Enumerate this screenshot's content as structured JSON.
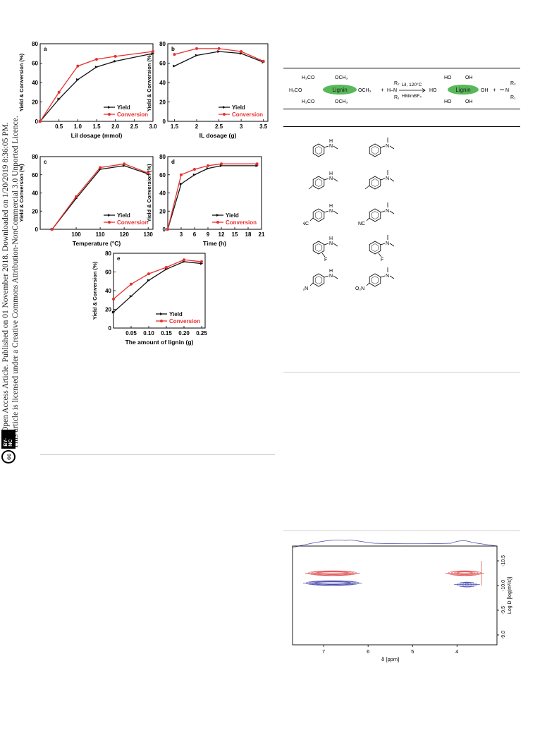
{
  "sidebar": {
    "open_access_text": "Open Access Article. Published on 01 November 2018. Downloaded on 1/20/2019 8:36:05 PM.",
    "license_text": "This article is licensed under a Creative Commons Attribution-NonCommercial 3.0 Unported Licence.",
    "cc_badge": "BY-NC",
    "cc_symbol": "cc"
  },
  "series_legend": {
    "yield": "Yield",
    "conversion": "Conversion"
  },
  "colors": {
    "yield": "#111111",
    "conversion": "#e8302e",
    "nmr_red": "#e05050",
    "nmr_blue": "#4a4ab0",
    "lignin_ellipse": "#59b95a"
  },
  "chart_data": [
    {
      "panel": "a",
      "type": "line",
      "xlabel": "LiI dosage (mmol)",
      "ylabel": "Yield & Conversion (%)",
      "xlim": [
        0,
        3.0
      ],
      "ylim": [
        0,
        80
      ],
      "xticks": [
        "0.5",
        "1.0",
        "1.5",
        "2.0",
        "2.5",
        "3.0"
      ],
      "yticks": [
        "0",
        "20",
        "40",
        "60",
        "80"
      ],
      "x": [
        0,
        0.5,
        1.0,
        1.5,
        2.0,
        3.0
      ],
      "series": [
        {
          "name": "Yield",
          "values": [
            0,
            23,
            43,
            56,
            62,
            70
          ]
        },
        {
          "name": "Conversion",
          "values": [
            0,
            30,
            57,
            64,
            67,
            72
          ]
        }
      ],
      "legend_position": "bottom-right"
    },
    {
      "panel": "b",
      "type": "line",
      "xlabel": "IL dosage (g)",
      "ylabel": "Yield & Conversion (%)",
      "xlim": [
        1.35,
        3.6
      ],
      "ylim": [
        0,
        80
      ],
      "xticks": [
        "1.5",
        "2",
        "2.5",
        "3",
        "3.5"
      ],
      "yticks": [
        "0",
        "20",
        "40",
        "60",
        "80"
      ],
      "x": [
        1.5,
        2.0,
        2.5,
        3.0,
        3.5
      ],
      "series": [
        {
          "name": "Yield",
          "values": [
            57,
            68,
            72,
            70,
            61
          ]
        },
        {
          "name": "Conversion",
          "values": [
            69,
            75,
            75,
            72,
            62
          ]
        }
      ],
      "legend_position": "bottom-right"
    },
    {
      "panel": "c",
      "type": "line",
      "xlabel": "Temperature (°C)",
      "ylabel": "Yield & Conversion (%)",
      "xlim": [
        85,
        132
      ],
      "ylim": [
        0,
        80
      ],
      "xticks": [
        "100",
        "110",
        "120",
        "130"
      ],
      "yticks": [
        "0",
        "20",
        "40",
        "60",
        "80"
      ],
      "x": [
        90,
        100,
        110,
        120,
        130
      ],
      "series": [
        {
          "name": "Yield",
          "values": [
            0,
            34,
            66,
            70,
            61
          ]
        },
        {
          "name": "Conversion",
          "values": [
            0,
            36,
            68,
            72,
            62
          ]
        }
      ],
      "legend_position": "bottom-right"
    },
    {
      "panel": "d",
      "type": "line",
      "xlabel": "Time (h)",
      "ylabel": "Yield & Conversion (%)",
      "xlim": [
        0,
        21
      ],
      "ylim": [
        0,
        80
      ],
      "xticks": [
        "3",
        "6",
        "9",
        "12",
        "15",
        "18",
        "21"
      ],
      "yticks": [
        "0",
        "20",
        "40",
        "60",
        "80"
      ],
      "x": [
        0,
        3,
        6,
        9,
        12,
        20
      ],
      "series": [
        {
          "name": "Yield",
          "values": [
            0,
            50,
            60,
            67,
            70,
            70
          ]
        },
        {
          "name": "Conversion",
          "values": [
            0,
            60,
            66,
            70,
            72,
            72
          ]
        }
      ],
      "legend_position": "bottom-right"
    },
    {
      "panel": "e",
      "type": "line",
      "xlabel": "The amount of lignin (g)",
      "ylabel": "Yield & Conversion (%)",
      "xlim": [
        0,
        0.26
      ],
      "ylim": [
        0,
        80
      ],
      "xticks": [
        "0.05",
        "0.10",
        "0.15",
        "0.20",
        "0.25"
      ],
      "yticks": [
        "0",
        "20",
        "40",
        "60",
        "80"
      ],
      "x": [
        0,
        0.05,
        0.1,
        0.15,
        0.2,
        0.25
      ],
      "series": [
        {
          "name": "Yield",
          "values": [
            17,
            34,
            51,
            63,
            71,
            69
          ]
        },
        {
          "name": "Conversion",
          "values": [
            31,
            47,
            58,
            65,
            73,
            71
          ]
        }
      ],
      "legend_position": "bottom-right"
    }
  ],
  "scheme": {
    "lignin": "Lignin",
    "left_groups": [
      "H₃CO",
      "OCH₃",
      "H₃CO",
      "OCH₃",
      "H₃CO",
      "OCH₃"
    ],
    "plus": "+",
    "amine_r2": "R₂",
    "amine_r1": "R₁",
    "amine_hn": "H–N",
    "condition_top": "LiI, 120°C",
    "condition_bottom": "HMimBF₄",
    "right_groups": [
      "HO",
      "OH",
      "HO",
      "OH",
      "HO",
      "OH"
    ],
    "product_n": "N",
    "product_r2": "R₂",
    "product_r1": "R₁"
  },
  "molecules": {
    "h_label": "H",
    "n_label": "N",
    "nc_label": "NC",
    "f_label": "F",
    "o2n_label": "O₂N"
  },
  "nmr": {
    "xlabel": "δ [ppm]",
    "xticks": [
      "7",
      "6",
      "5",
      "4"
    ],
    "ylabel": "Log D [log(m²/s)]",
    "yticks": [
      "-10.5",
      "-10.0",
      "-9.5",
      "-9.0"
    ]
  }
}
